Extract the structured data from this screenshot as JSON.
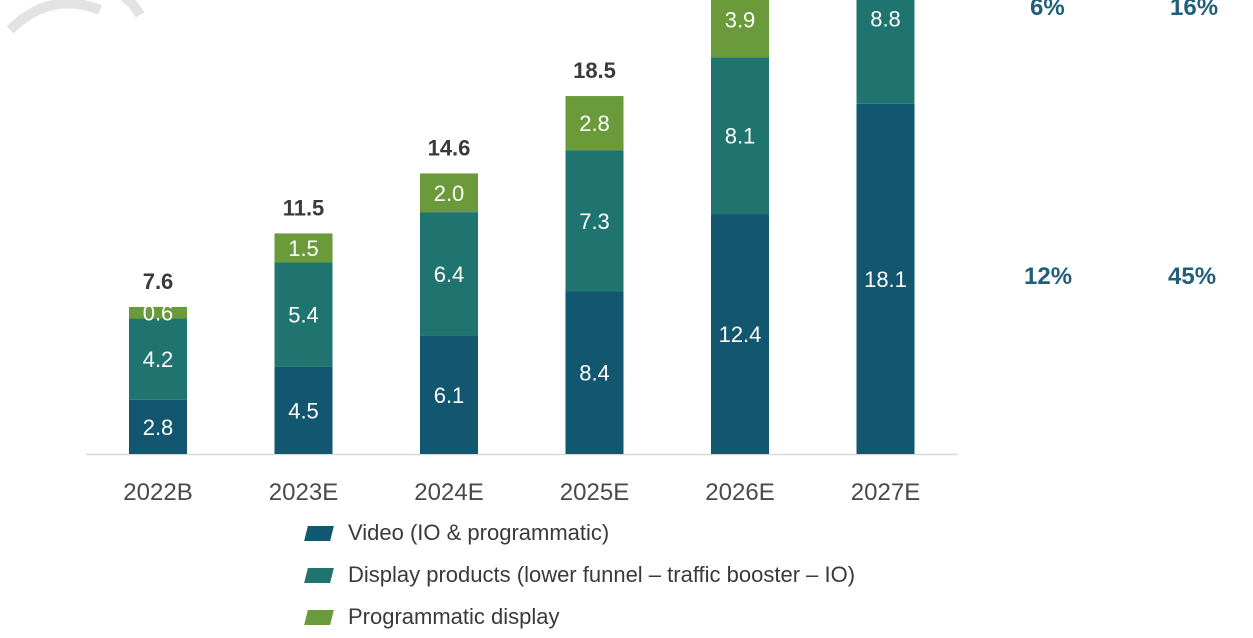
{
  "chart_data": {
    "type": "bar",
    "stacked": true,
    "categories": [
      "2022B",
      "2023E",
      "2024E",
      "2025E",
      "2026E",
      "2027E"
    ],
    "series": [
      {
        "name": "Video (IO & programmatic)",
        "color": "#12566f",
        "values": [
          2.8,
          4.5,
          6.1,
          8.4,
          12.4,
          18.1
        ]
      },
      {
        "name": "Display products (lower funnel – traffic booster – IO)",
        "color": "#1f7470",
        "values": [
          4.2,
          5.4,
          6.4,
          7.3,
          8.1,
          8.8
        ]
      },
      {
        "name": "Programmatic display",
        "color": "#6a9a3a",
        "values": [
          0.6,
          1.5,
          2.0,
          2.8,
          3.9,
          null
        ]
      }
    ],
    "totals": [
      "7.6",
      "11.5",
      "14.6",
      "18.5",
      "",
      ""
    ],
    "segment_labels": [
      [
        "2.8",
        "4.5",
        "6.1",
        "8.4",
        "12.4",
        "18.1"
      ],
      [
        "4.2",
        "5.4",
        "6.4",
        "7.3",
        "8.1",
        "8.8"
      ],
      [
        "0.6",
        "1.5",
        "2.0",
        "2.8",
        "3.9",
        ""
      ]
    ],
    "ylim": [
      0,
      33
    ],
    "legend_position": "bottom",
    "grid": false
  },
  "cagr_columns": [
    {
      "top": "6%",
      "bottom": "12%"
    },
    {
      "top": "16%",
      "bottom": "45%"
    }
  ],
  "legend": [
    {
      "label": "Video (IO & programmatic)",
      "color": "#12566f"
    },
    {
      "label": "Display products (lower funnel – traffic booster – IO)",
      "color": "#1f7470"
    },
    {
      "label": "Programmatic display",
      "color": "#6a9a3a"
    }
  ]
}
